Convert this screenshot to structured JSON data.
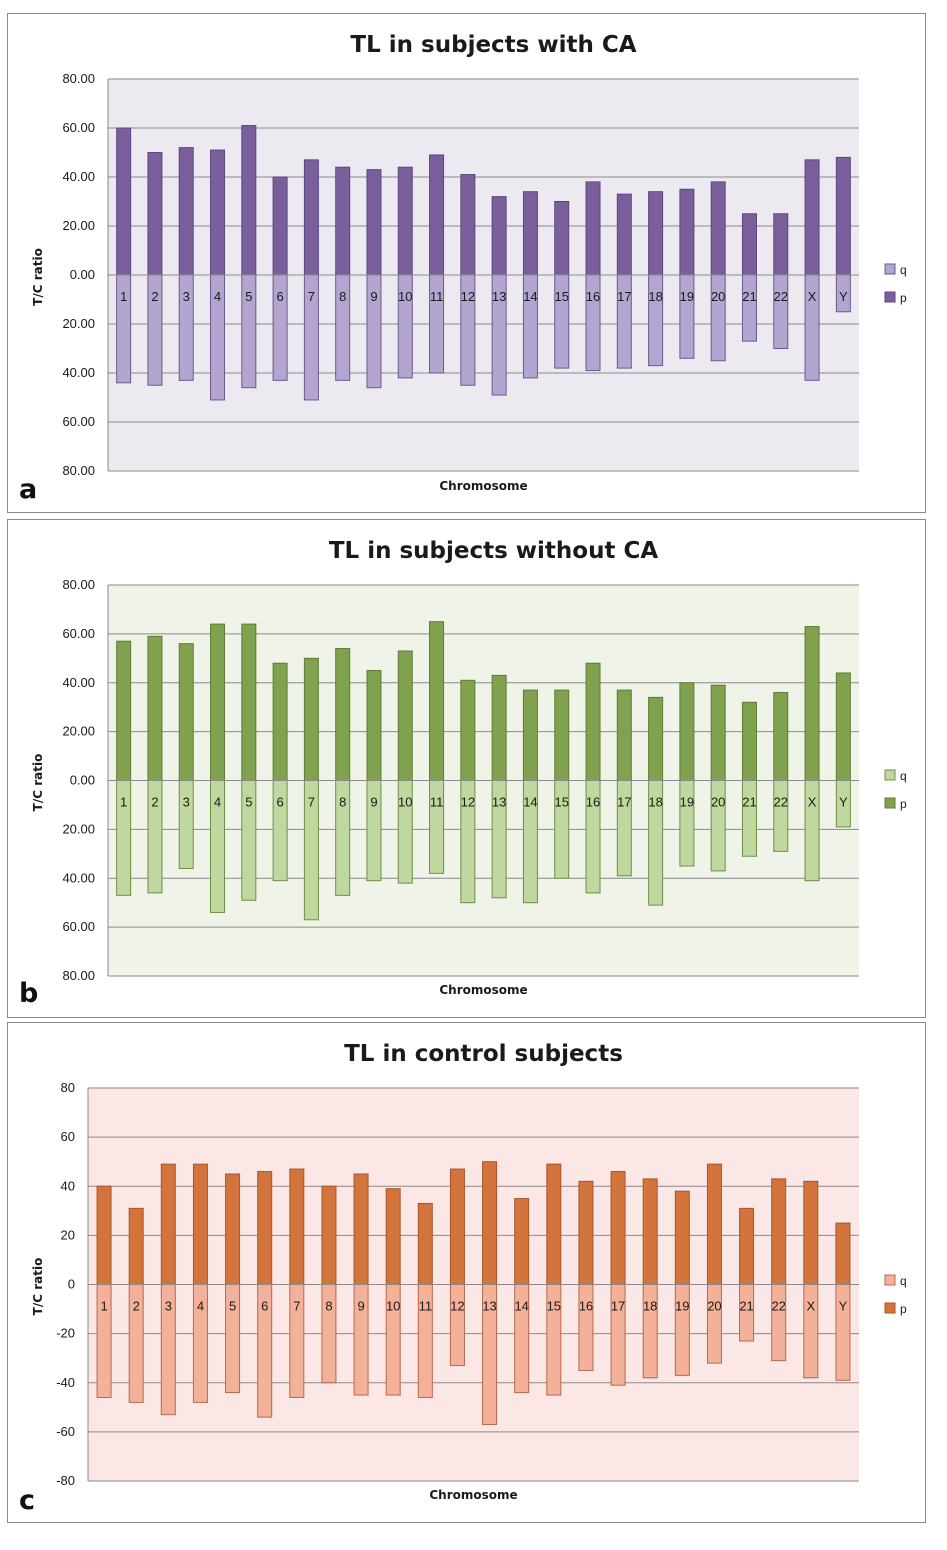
{
  "chart_data": [
    {
      "type": "bar",
      "panel_label": "a",
      "title": "TL in subjects with CA",
      "xlabel": "Chromosome",
      "ylabel": "T/C ratio",
      "ylim": [
        -80,
        80
      ],
      "yticks": [
        80,
        60,
        40,
        20,
        0,
        -20,
        -40,
        -60,
        -80
      ],
      "ytick_labels": [
        "80.00",
        "60.00",
        "40.00",
        "20.00",
        "0.00",
        "20.00",
        "40.00",
        "60.00",
        "80.00"
      ],
      "categories": [
        "1",
        "2",
        "3",
        "4",
        "5",
        "6",
        "7",
        "8",
        "9",
        "10",
        "11",
        "12",
        "13",
        "14",
        "15",
        "16",
        "17",
        "18",
        "19",
        "20",
        "21",
        "22",
        "X",
        "Y"
      ],
      "series": [
        {
          "name": "q",
          "values": [
            -44,
            -45,
            -43,
            -51,
            -46,
            -43,
            -51,
            -43,
            -46,
            -42,
            -40,
            -45,
            -49,
            -42,
            -38,
            -39,
            -38,
            -37,
            -34,
            -35,
            -27,
            -30,
            -43,
            -15
          ]
        },
        {
          "name": "p",
          "values": [
            60,
            50,
            52,
            51,
            61,
            40,
            47,
            44,
            43,
            44,
            49,
            41,
            32,
            34,
            30,
            38,
            33,
            34,
            35,
            38,
            25,
            25,
            47,
            48
          ]
        }
      ],
      "legend": [
        "q",
        "p"
      ],
      "colors": {
        "p_fill": "#7a5f9c",
        "p_stroke": "#5d4680",
        "q_fill": "#b3a5d0",
        "q_stroke": "#6b5a8f",
        "plot_bg": "#ece9f1"
      }
    },
    {
      "type": "bar",
      "panel_label": "b",
      "title": "TL in subjects without CA",
      "xlabel": "Chromosome",
      "ylabel": "T/C ratio",
      "ylim": [
        -80,
        80
      ],
      "yticks": [
        80,
        60,
        40,
        20,
        0,
        -20,
        -40,
        -60,
        -80
      ],
      "ytick_labels": [
        "80.00",
        "60.00",
        "40.00",
        "20.00",
        "0.00",
        "20.00",
        "40.00",
        "60.00",
        "80.00"
      ],
      "categories": [
        "1",
        "2",
        "3",
        "4",
        "5",
        "6",
        "7",
        "8",
        "9",
        "10",
        "11",
        "12",
        "13",
        "14",
        "15",
        "16",
        "17",
        "18",
        "19",
        "20",
        "21",
        "22",
        "X",
        "Y"
      ],
      "series": [
        {
          "name": "q",
          "values": [
            -47,
            -46,
            -36,
            -54,
            -49,
            -41,
            -57,
            -47,
            -41,
            -42,
            -38,
            -50,
            -48,
            -50,
            -40,
            -46,
            -39,
            -51,
            -35,
            -37,
            -31,
            -29,
            -41,
            -19
          ]
        },
        {
          "name": "p",
          "values": [
            57,
            59,
            56,
            64,
            64,
            48,
            50,
            54,
            45,
            53,
            65,
            41,
            43,
            37,
            37,
            48,
            37,
            34,
            40,
            39,
            32,
            36,
            63,
            44
          ]
        }
      ],
      "legend": [
        "q",
        "p"
      ],
      "colors": {
        "p_fill": "#80a24e",
        "p_stroke": "#5f7c36",
        "q_fill": "#bfd8a0",
        "q_stroke": "#6f8f45",
        "plot_bg": "#eff3e8"
      }
    },
    {
      "type": "bar",
      "panel_label": "c",
      "title": "TL in control subjects",
      "xlabel": "Chromosome",
      "ylabel": "T/C ratio",
      "ylim": [
        -80,
        80
      ],
      "yticks": [
        80,
        60,
        40,
        20,
        0,
        -20,
        -40,
        -60,
        -80
      ],
      "ytick_labels": [
        "80",
        "60",
        "40",
        "20",
        "0",
        "-20",
        "-40",
        "-60",
        "-80"
      ],
      "categories": [
        "1",
        "2",
        "3",
        "4",
        "5",
        "6",
        "7",
        "8",
        "9",
        "10",
        "11",
        "12",
        "13",
        "14",
        "15",
        "16",
        "17",
        "18",
        "19",
        "20",
        "21",
        "22",
        "X",
        "Y"
      ],
      "series": [
        {
          "name": "q",
          "values": [
            -46,
            -48,
            -53,
            -48,
            -44,
            -54,
            -46,
            -40,
            -45,
            -45,
            -46,
            -33,
            -57,
            -44,
            -45,
            -35,
            -41,
            -38,
            -37,
            -32,
            -23,
            -31,
            -38,
            -39
          ]
        },
        {
          "name": "p",
          "values": [
            40,
            31,
            49,
            49,
            45,
            46,
            47,
            40,
            45,
            39,
            33,
            47,
            50,
            35,
            49,
            42,
            46,
            43,
            38,
            49,
            31,
            43,
            42,
            25
          ]
        }
      ],
      "legend": [
        "q",
        "p"
      ],
      "colors": {
        "p_fill": "#d2743c",
        "p_stroke": "#a8572a",
        "q_fill": "#f4b19a",
        "q_stroke": "#b8694a",
        "plot_bg": "#fbe7e5"
      }
    }
  ]
}
